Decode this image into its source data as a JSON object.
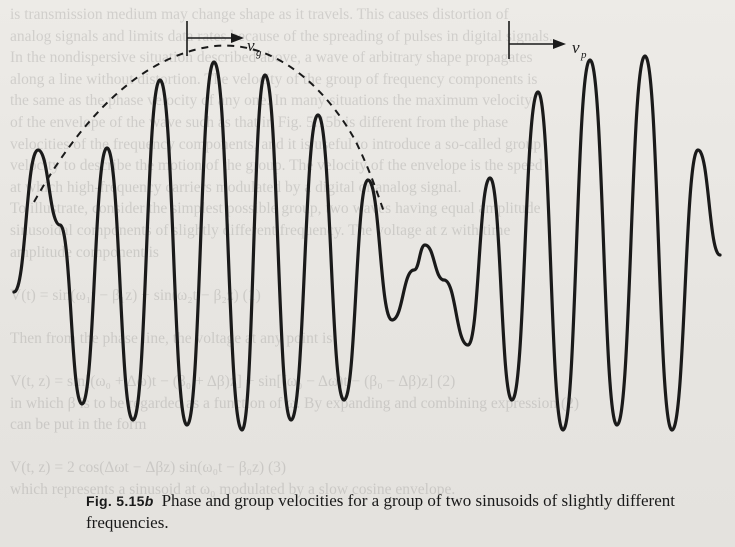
{
  "background_text": [
    "is transmission medium may change shape as it travels. This causes distortion of",
    "analog signals and limits data rates because of the spreading of pulses in digital signals.",
    "In the nondispersive situation described above, a wave of arbitrary shape propagates",
    "along a line without distortion. The velocity of the group of frequency components is",
    "the same as the phase velocity of any one. In many situations the maximum velocity",
    "of the envelope of the wave such as that in Fig. 5.15b is different from the phase",
    "velocities of the frequency components, and it is useful to introduce a so-called group",
    "velocity to describe the motion of the group. The velocity of the envelope is the speed",
    "at which high-frequency carriers modulated by a digital or analog signal.",
    "To illustrate, consider the simplest possible group, two waves having equal amplitude",
    "sinusoidal components of slightly different frequency. The voltage at z with time",
    "amplitude component is",
    "",
    "V(t) = sin(ω₁t − β₁z) + sin(ω₂t − β₂z)                               (1)",
    "",
    "Then from the phase line, the voltage at any point is",
    "",
    "V(t, z) = sin[(ω₀ + Δω)t − (β₀ + Δβ)z] + sin[(ω₀ − Δω)t − (β₀ − Δβ)z]   (2)",
    "in which β is to be regarded as a function of ω. By expanding and combining expression (2)",
    "can be put in the form",
    "",
    "V(t, z) = 2 cos(Δωt − Δβz) sin(ω₀t − β₀z)                         (3)",
    "which represents a sinusoid at ω₀ modulated by a slow cosine envelope."
  ],
  "figure": {
    "group_velocity_label": "v",
    "group_velocity_subscript": "g",
    "phase_velocity_label": "v",
    "phase_velocity_subscript": "p",
    "wave": {
      "carrier_cycles_shown": 13,
      "envelope_cycles_shown": 1,
      "description_of_marks": "modulated sinusoid with dashed envelope curve over the first group"
    }
  },
  "caption": {
    "figure_number": "Fig. 5.15",
    "figure_letter": "b",
    "text": "Phase and group velocities for a group of two sinusoids of slightly different frequencies."
  }
}
